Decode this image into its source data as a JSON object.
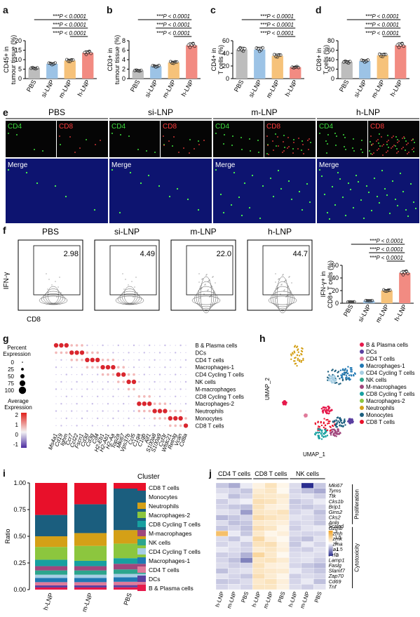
{
  "panel_letters": {
    "a": "a",
    "b": "b",
    "c": "c",
    "d": "d",
    "e": "e",
    "f": "f",
    "g": "g",
    "h": "h",
    "i": "i",
    "j": "j"
  },
  "groups": [
    "PBS",
    "si-LNP",
    "m-LNP",
    "h-LNP"
  ],
  "colors": {
    "PBS": "#bdbdbd",
    "si-LNP": "#9cc3e6",
    "m-LNP": "#f6c27a",
    "h-LNP": "#f28b82",
    "heat_low": "#2b2e8f",
    "heat_mid": "#ffffff",
    "heat_high": "#f0a020"
  },
  "sig_label": "***P < 0.0001",
  "chart_data": [
    {
      "type": "bar",
      "panel": "a",
      "ylabel": "CD45+ in tumour tissue (%)",
      "ylim": [
        0,
        20
      ],
      "yticks": [
        0,
        5,
        10,
        15,
        20
      ],
      "categories": [
        "PBS",
        "si-LNP",
        "m-LNP",
        "h-LNP"
      ],
      "values": [
        5.5,
        7.8,
        9.5,
        13.6
      ]
    },
    {
      "type": "bar",
      "panel": "b",
      "ylabel": "CD3+ in tumour tissue (%)",
      "ylim": [
        0,
        8
      ],
      "yticks": [
        0,
        2,
        4,
        6,
        8
      ],
      "categories": [
        "PBS",
        "si-LNP",
        "m-LNP",
        "h-LNP"
      ],
      "values": [
        1.7,
        2.6,
        3.4,
        7.0
      ]
    },
    {
      "type": "bar",
      "panel": "c",
      "ylabel": "CD4+ in T cells (%)",
      "ylim": [
        0,
        60
      ],
      "yticks": [
        0,
        20,
        40,
        60
      ],
      "categories": [
        "PBS",
        "si-LNP",
        "m-LNP",
        "h-LNP"
      ],
      "values": [
        46,
        46,
        36,
        18
      ]
    },
    {
      "type": "bar",
      "panel": "d",
      "ylabel": "CD8+ in T cells (%)",
      "ylim": [
        0,
        80
      ],
      "yticks": [
        0,
        20,
        40,
        60,
        80
      ],
      "categories": [
        "PBS",
        "si-LNP",
        "m-LNP",
        "h-LNP"
      ],
      "values": [
        35,
        37,
        49,
        70
      ]
    },
    {
      "type": "bar",
      "panel": "f",
      "ylabel": "IFN-γ+ in CD8+ T cells (%)",
      "ylim": [
        0,
        60
      ],
      "yticks": [
        0,
        20,
        40,
        60
      ],
      "categories": [
        "PBS",
        "si-LNP",
        "m-LNP",
        "h-LNP"
      ],
      "values": [
        2,
        4,
        20,
        48
      ]
    },
    {
      "type": "bar",
      "panel": "i",
      "stacked": true,
      "ylabel": "Ratio",
      "xlabel": "",
      "ylim": [
        0,
        1
      ],
      "yticks": [
        "0.00",
        "0.25",
        "0.50",
        "0.75",
        "1.00"
      ],
      "categories": [
        "h-LNP",
        "m-LNP",
        "PBS"
      ],
      "series": [
        {
          "name": "B & Plasma cells",
          "color": "#e6194b",
          "values": [
            0.02,
            0.02,
            0.02
          ]
        },
        {
          "name": "DCs",
          "color": "#5b3fa0",
          "values": [
            0.02,
            0.02,
            0.02
          ]
        },
        {
          "name": "CD4 T cells",
          "color": "#e07a9a",
          "values": [
            0.03,
            0.03,
            0.03
          ]
        },
        {
          "name": "Macrophages-1",
          "color": "#1f78b4",
          "values": [
            0.04,
            0.04,
            0.04
          ]
        },
        {
          "name": "CD4 Cycling T cells",
          "color": "#a6cee3",
          "values": [
            0.03,
            0.03,
            0.03
          ]
        },
        {
          "name": "NK cells",
          "color": "#2ca58d",
          "values": [
            0.04,
            0.04,
            0.04
          ]
        },
        {
          "name": "M-macrophages",
          "color": "#a0467c",
          "values": [
            0.04,
            0.04,
            0.05
          ]
        },
        {
          "name": "CD8 Cycling T cells",
          "color": "#17a0a0",
          "values": [
            0.06,
            0.05,
            0.05
          ]
        },
        {
          "name": "Macrophages-2",
          "color": "#8cc63e",
          "values": [
            0.12,
            0.14,
            0.13
          ]
        },
        {
          "name": "Neutrophils",
          "color": "#d4a017",
          "values": [
            0.1,
            0.12,
            0.12
          ]
        },
        {
          "name": "Monocytes",
          "color": "#1b5e7e",
          "values": [
            0.2,
            0.27,
            0.37
          ]
        },
        {
          "name": "CD8 T cells",
          "color": "#e8102a",
          "values": [
            0.3,
            0.2,
            0.05
          ]
        }
      ]
    }
  ],
  "panel_e": {
    "groups": [
      "PBS",
      "si-LNP",
      "m-LNP",
      "h-LNP"
    ],
    "cd4": "CD4",
    "cd8": "CD8",
    "merge": "Merge"
  },
  "panel_f": {
    "titles": [
      "PBS",
      "si-LNP",
      "m-LNP",
      "h-LNP"
    ],
    "values": [
      "2.98",
      "4.49",
      "22.0",
      "44.7"
    ],
    "ylabel": "IFN-γ",
    "xlabel": "CD8"
  },
  "panel_g": {
    "clusters": [
      "B & Plasma cells",
      "DCs",
      "CD4 T cells",
      "Macrophages-1",
      "CD4 Cycling T cells",
      "NK cells",
      "M-macrophages",
      "CD8 Cycling T cells",
      "Macrophages-2",
      "Neutrophils",
      "Monocytes",
      "CD8 T cells"
    ],
    "genes": [
      "Ms4a1",
      "Cd19",
      "Ighm",
      "Ccr7",
      "Ccl22",
      "Fscn1",
      "Cd3d",
      "Cd3g",
      "Cd4",
      "H2-Eb1",
      "H2-Ab1",
      "H2-Aa",
      "Top2a",
      "Mki67",
      "Vps37b",
      "Ccl5",
      "C1qa",
      "C1qb",
      "Aif1",
      "S100a8",
      "S100a9",
      "Csf3r",
      "Wfdc21",
      "Retnlg",
      "Vcan",
      "Cd8a"
    ],
    "percent_title": "Percent Expression",
    "percent_levels": [
      "0",
      "25",
      "50",
      "75",
      "100"
    ],
    "avg_title": "Average Expression",
    "avg_ticks": [
      "2",
      "1",
      "0",
      "-1"
    ]
  },
  "panel_h": {
    "xlabel": "UMAP_1",
    "ylabel": "UMAP_2",
    "legend": [
      "B & Plasma cells",
      "DCs",
      "CD4 T cells",
      "Macrophages-1",
      "CD4 Cycling T cells",
      "NK cells",
      "M-macrophages",
      "CD8 Cycling T cells",
      "Macrophages-2",
      "Neutrophils",
      "Monocytes",
      "CD8 T cells"
    ],
    "legend_colors": [
      "#e6194b",
      "#5b3fa0",
      "#e07a9a",
      "#1f78b4",
      "#a6cee3",
      "#2ca58d",
      "#a0467c",
      "#17a0a0",
      "#8cc63e",
      "#d4a017",
      "#1b5e7e",
      "#e8102a"
    ]
  },
  "panel_i": {
    "legend_title": "Cluster",
    "legend": [
      "CD8 T cells",
      "Monocytes",
      "Neutrophils",
      "Macrophages-2",
      "CD8 Cycling T cells",
      "M-macrophages",
      "NK cells",
      "CD4 Cycling T cells",
      "Macrophages-1",
      "CD4 T cells",
      "DCs",
      "B & Plasma cells"
    ],
    "legend_colors": [
      "#e8102a",
      "#1b5e7e",
      "#d4a017",
      "#8cc63e",
      "#17a0a0",
      "#a0467c",
      "#2ca58d",
      "#a6cee3",
      "#1f78b4",
      "#e07a9a",
      "#5b3fa0",
      "#e6194b"
    ]
  },
  "panel_j": {
    "group_titles": [
      "CD4 T cells",
      "CD8 T cells",
      "NK cells"
    ],
    "columns": [
      "h-LNP",
      "m-LNP",
      "PBS",
      "h-LNP",
      "m-LNP",
      "PBS",
      "h-LNP",
      "m-LNP",
      "PBS"
    ],
    "genes": [
      "Mki67",
      "Tyms",
      "Ttk",
      "Cks1b",
      "Brip1",
      "Gins2",
      "Cks2",
      "Anln",
      "Gzmb",
      "Gzmh",
      "Gzmk",
      "Gzma",
      "Tia1",
      "Prf1",
      "Lamp1",
      "Faslg",
      "Slamf7",
      "Zap70",
      "Cd69",
      "Tnf"
    ],
    "section_labels": [
      "Proliferation",
      "Cytotoxicity"
    ],
    "scale_title": "Scaled",
    "scale_ticks": [
      "3",
      "1.5",
      "0",
      "-1.5",
      "-3"
    ],
    "matrix": [
      [
        -0.8,
        -1.2,
        -0.3,
        0.4,
        0.9,
        0.3,
        -0.5,
        -3.0,
        -0.8
      ],
      [
        -0.5,
        -0.6,
        -0.8,
        0.6,
        0.8,
        0.2,
        -0.6,
        -0.9,
        -1.2
      ],
      [
        -0.3,
        -0.9,
        -0.6,
        0.8,
        0.7,
        0.6,
        -0.5,
        -0.4,
        -0.7
      ],
      [
        -0.7,
        -0.4,
        -0.2,
        1.0,
        0.9,
        0.5,
        -0.8,
        -0.6,
        -0.3
      ],
      [
        -0.6,
        -0.8,
        -0.9,
        0.9,
        0.5,
        0.4,
        -0.7,
        -0.8,
        -0.6
      ],
      [
        -0.4,
        -0.5,
        -1.4,
        0.8,
        0.7,
        0.9,
        -0.6,
        -0.4,
        -0.9
      ],
      [
        -1.0,
        -0.8,
        -0.6,
        1.1,
        0.9,
        0.7,
        -0.4,
        -0.5,
        -0.7
      ],
      [
        -0.5,
        -0.9,
        -0.8,
        0.7,
        0.6,
        0.5,
        -0.6,
        -0.5,
        -0.8
      ],
      [
        -0.8,
        -0.6,
        -0.9,
        1.0,
        0.8,
        0.3,
        -0.7,
        -0.4,
        -0.3
      ],
      [
        2.0,
        -0.3,
        -0.8,
        0.7,
        0.3,
        0.5,
        -0.5,
        -0.6,
        -0.6
      ],
      [
        -0.5,
        -0.8,
        -0.3,
        1.2,
        0.5,
        0.2,
        -0.7,
        -0.9,
        -0.4
      ],
      [
        -0.6,
        -0.4,
        -0.7,
        0.9,
        1.0,
        0.4,
        -0.8,
        -0.3,
        -0.6
      ],
      [
        -0.3,
        -0.5,
        -0.6,
        0.6,
        0.8,
        0.5,
        -0.6,
        -0.7,
        -0.4
      ],
      [
        -0.7,
        -0.6,
        -1.1,
        1.3,
        0.7,
        0.2,
        -0.5,
        -0.4,
        -0.5
      ],
      [
        -0.6,
        -0.9,
        -1.8,
        0.8,
        0.9,
        0.6,
        -0.5,
        -0.4,
        -0.7
      ],
      [
        -0.5,
        -0.7,
        -0.6,
        0.9,
        0.5,
        0.4,
        -0.6,
        -0.8,
        -1.0
      ],
      [
        -0.9,
        -0.5,
        -0.4,
        0.8,
        0.7,
        0.6,
        -0.3,
        -0.6,
        -0.8
      ],
      [
        -0.4,
        -0.6,
        -0.8,
        1.0,
        0.6,
        0.3,
        -0.7,
        -0.5,
        -0.6
      ],
      [
        -0.8,
        -0.7,
        -0.5,
        0.7,
        0.9,
        0.5,
        -0.6,
        -0.3,
        -0.9
      ],
      [
        -0.6,
        -0.4,
        -0.6,
        0.8,
        0.8,
        0.4,
        -0.5,
        -0.7,
        -0.4
      ]
    ]
  }
}
